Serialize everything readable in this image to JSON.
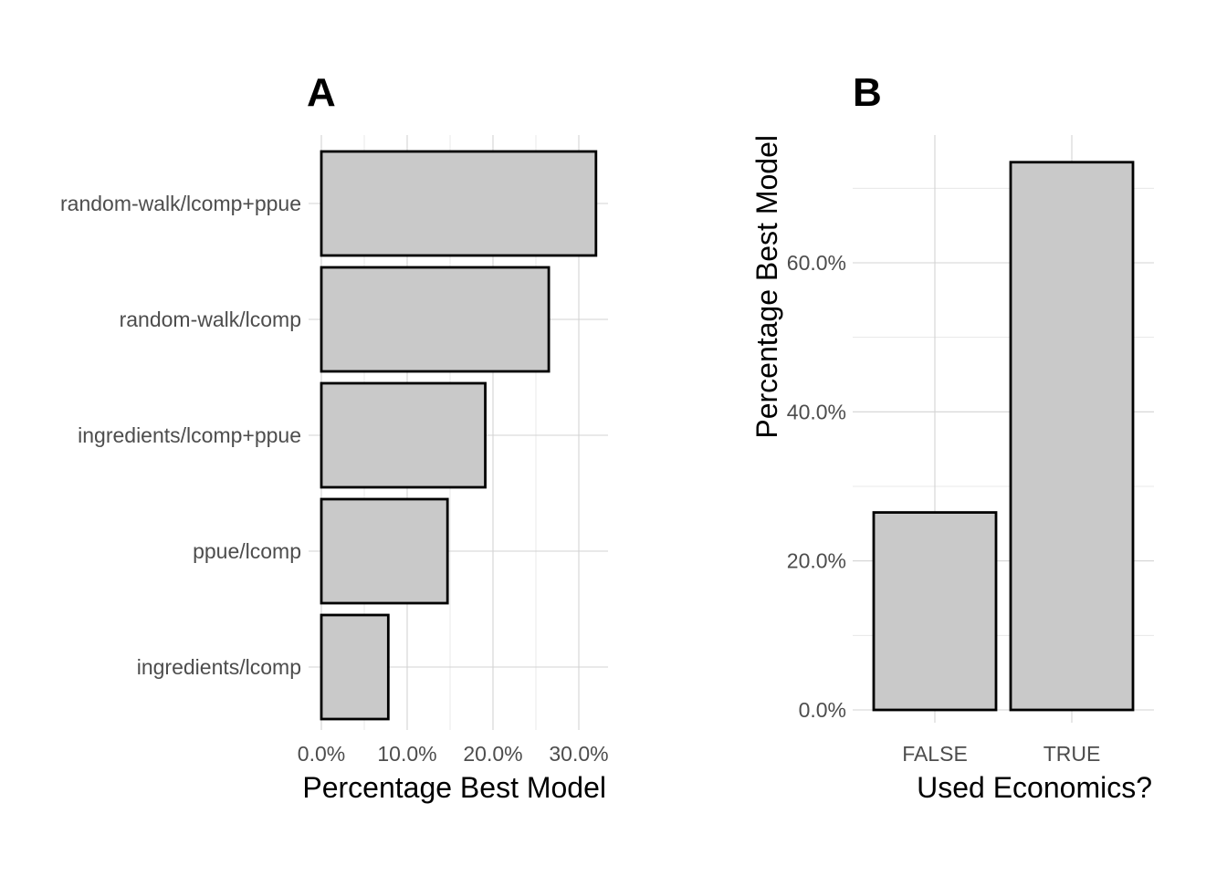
{
  "chart_data": [
    {
      "type": "bar",
      "orientation": "horizontal",
      "title": "A",
      "xlabel": "Percentage Best Model",
      "ylabel": "",
      "categories": [
        "random-walk/lcomp+ppue",
        "random-walk/lcomp",
        "ingredients/lcomp+ppue",
        "ppue/lcomp",
        "ingredients/lcomp"
      ],
      "values": [
        0.32,
        0.265,
        0.191,
        0.147,
        0.078
      ],
      "xlim": [
        0,
        0.33
      ],
      "xticks": [
        0,
        0.1,
        0.2,
        0.3
      ],
      "xtick_labels": [
        "0.0%",
        "10.0%",
        "20.0%",
        "30.0%"
      ],
      "grid": true,
      "colors": {
        "fill": "#c9c9c9",
        "outline": "#000000"
      }
    },
    {
      "type": "bar",
      "orientation": "vertical",
      "title": "B",
      "xlabel": "Used Economics?",
      "ylabel": "Percentage Best Model",
      "categories": [
        "FALSE",
        "TRUE"
      ],
      "values": [
        0.265,
        0.735
      ],
      "ylim": [
        0,
        0.77
      ],
      "yticks": [
        0,
        0.2,
        0.4,
        0.6
      ],
      "ytick_labels": [
        "0.0%",
        "20.0%",
        "40.0%",
        "60.0%"
      ],
      "grid": true,
      "colors": {
        "fill": "#c9c9c9",
        "outline": "#000000"
      }
    }
  ]
}
